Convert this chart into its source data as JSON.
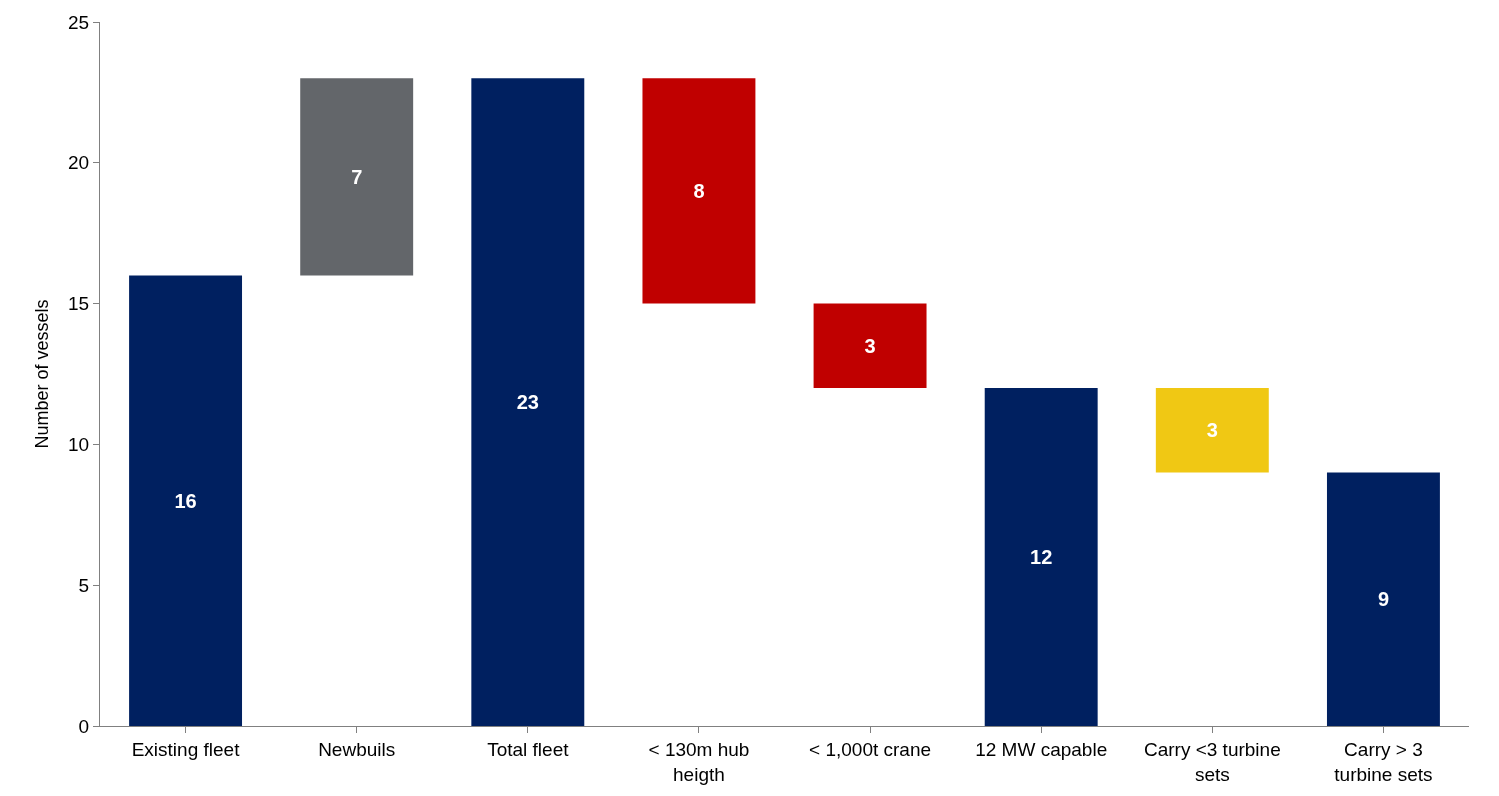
{
  "chart_data": {
    "type": "bar",
    "ylabel": "Number of vessels",
    "categories": [
      "Existing fleet",
      "Newbuils",
      "Total fleet",
      "< 130m hub heigth",
      "< 1,000t crane",
      "12 MW capable",
      "Carry <3 turbine sets",
      "Carry > 3 turbine sets"
    ],
    "values": [
      16,
      7,
      23,
      8,
      3,
      12,
      3,
      9
    ],
    "base": [
      0,
      16,
      0,
      15,
      12,
      0,
      9,
      0
    ],
    "colors": [
      "#002060",
      "#63666a",
      "#002060",
      "#c00000",
      "#c00000",
      "#002060",
      "#f0c814",
      "#002060"
    ],
    "ylim": [
      0,
      25
    ],
    "yticks": [
      0,
      5,
      10,
      15,
      20,
      25
    ],
    "legend": false,
    "data_labels": true
  }
}
